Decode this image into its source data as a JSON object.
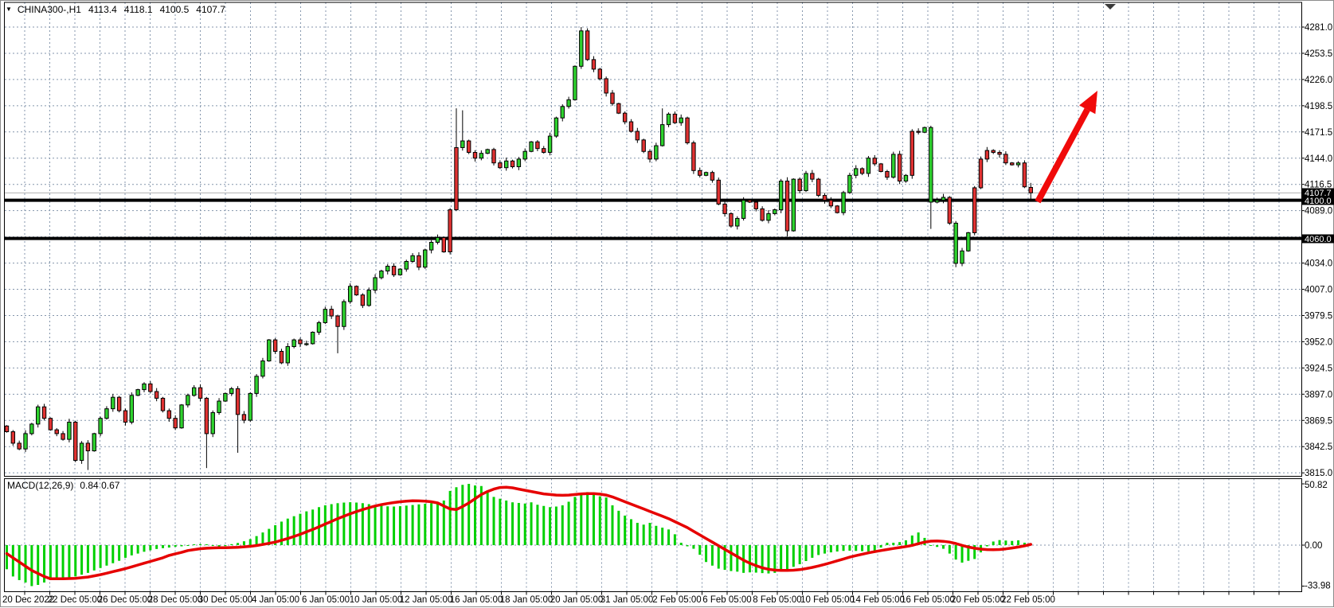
{
  "window": {
    "dropdown_icon": "▼",
    "symbol_period": "CHINA300-,H1",
    "ohlc": {
      "open": "4113.4",
      "high": "4118.1",
      "low": "4100.5",
      "close": "4107.7"
    },
    "shift_marker_icon": "▼"
  },
  "colors": {
    "background": "#ffffff",
    "grid": "#8496AC",
    "bull_body": "#2ED22E",
    "bear_body": "#E03232",
    "candle_outline": "#000000",
    "wick": "#000000",
    "level_line": "#000000",
    "current_price_line": "#b0b0b0",
    "axis_text": "#000000",
    "label_box_bg": "#000000",
    "label_box_fg": "#ffffff",
    "macd_histogram": "#00D000",
    "macd_signal": "#E60000",
    "arrow": "#F00A0A",
    "border": "#000000"
  },
  "chart_data": {
    "type": "candlestick",
    "symbol": "CHINA300-",
    "timeframe": "H1",
    "title_ohlc": {
      "open": 4113.4,
      "high": 4118.1,
      "low": 4100.5,
      "close": 4107.7
    },
    "price_axis": {
      "top": 4281.0,
      "bottom": 3815.0,
      "labels": [
        "4281.0",
        "4253.5",
        "4226.0",
        "4198.5",
        "4171.5",
        "4144.0",
        "4116.5",
        "4089.0",
        null,
        "4034.0",
        "4007.0",
        "3979.5",
        "3952.0",
        "3924.5",
        "3897.0",
        "3869.5",
        "3842.5",
        "3815.0"
      ]
    },
    "time_axis": {
      "labels": [
        "20 Dec 2022",
        "22 Dec 05:00",
        "26 Dec 05:00",
        "28 Dec 05:00",
        "30 Dec 05:00",
        "4 Jan 05:00",
        "6 Jan 05:00",
        "10 Jan 05:00",
        "12 Jan 05:00",
        "16 Jan 05:00",
        "18 Jan 05:00",
        "20 Jan 05:00",
        "31 Jan 05:00",
        "2 Feb 05:00",
        "6 Feb 05:00",
        "8 Feb 05:00",
        "10 Feb 05:00",
        "14 Feb 05:00",
        "16 Feb 05:00",
        "20 Feb 05:00",
        "22 Feb 05:00"
      ]
    },
    "levels": [
      {
        "price": 4107.7,
        "label": "4107.7",
        "style": "thin",
        "boxed": true
      },
      {
        "price": 4100.0,
        "label": "4100.0",
        "style": "thick",
        "boxed": true
      },
      {
        "price": 4060.0,
        "label": "4060.0",
        "style": "thick",
        "boxed": true
      }
    ],
    "candles": {
      "first_open": 3864,
      "closes": [
        3858,
        3846,
        3840,
        3856,
        3866,
        3884,
        3872,
        3860,
        3856,
        3850,
        3868,
        3828,
        3846,
        3838,
        3856,
        3872,
        3882,
        3894,
        3880,
        3868,
        3896,
        3902,
        3908,
        3900,
        3893,
        3880,
        3872,
        3862,
        3886,
        3896,
        3904,
        3893,
        3856,
        3878,
        3890,
        3898,
        3903,
        3876,
        3870,
        3898,
        3916,
        3932,
        3954,
        3942,
        3930,
        3947,
        3954,
        3950,
        3950,
        3962,
        3972,
        3986,
        3979,
        3968,
        3994,
        4010,
        4001,
        3990,
        4006,
        4019,
        4026,
        4031,
        4022,
        4028,
        4036,
        4042,
        4030,
        4048,
        4056,
        4061,
        4046,
        4090,
        4155,
        4162,
        4150,
        4144,
        4149,
        4153,
        4139,
        4134,
        4141,
        4135,
        4143,
        4151,
        4161,
        4154,
        4150,
        4167,
        4186,
        4198,
        4205,
        4240,
        4277,
        4247,
        4237,
        4227,
        4212,
        4201,
        4191,
        4182,
        4172,
        4163,
        4151,
        4143,
        4157,
        4179,
        4190,
        4181,
        4186,
        4160,
        4131,
        4126,
        4129,
        4121,
        4096,
        4086,
        4073,
        4081,
        4100,
        4098,
        4091,
        4079,
        4086,
        4090,
        4120,
        4068,
        4122,
        4110,
        4128,
        4122,
        4105,
        4100,
        4094,
        4087,
        4108,
        4126,
        4133,
        4128,
        4144,
        4138,
        4130,
        4124,
        4148,
        4120,
        4126,
        4172,
        4171,
        4176,
        4098,
        4100,
        4103,
        4076,
        4034,
        4047,
        4066,
        4113,
        4143,
        4152,
        4150,
        4148,
        4139,
        4137,
        4139,
        4114,
        4107.7
      ],
      "overrides": {
        "13": {
          "low": 3818
        },
        "32": {
          "low": 3820
        },
        "37": {
          "low": 3836
        },
        "53": {
          "low": 3940
        },
        "72": {
          "high": 4196
        },
        "73": {
          "high": 4194
        },
        "92": {
          "high": 4281
        },
        "105": {
          "high": 4196
        },
        "125": {
          "high": 4124,
          "low": 4062
        },
        "148": {
          "low": 4070
        },
        "152": {
          "low": 4030
        },
        "153": {
          "low": 4031
        },
        "164": {
          "open": 4113.4,
          "high": 4118.1,
          "low": 4100.5
        }
      },
      "force_color": {
        "71": "bear",
        "72": "bear",
        "145": "bear",
        "148": "bull",
        "152": "bull",
        "155": "bear",
        "156": "bear",
        "157": "bear"
      }
    },
    "macd": {
      "label": "MACD(12,26,9)",
      "value_text": "0.84 0.67",
      "axis_labels": [
        "50.82",
        "0.00",
        "-33.98"
      ],
      "axis_values": [
        50.82,
        0,
        -33.98
      ],
      "histogram": [
        -20,
        -26,
        -29,
        -31,
        -33.98,
        -33,
        -31,
        -29,
        -27.5,
        -27.5,
        -27.5,
        -26,
        -24.5,
        -23,
        -21,
        -19,
        -17,
        -15,
        -13,
        -10.5,
        -8.5,
        -7,
        -5.5,
        -4.3,
        -3.2,
        -2.5,
        -2,
        -1.4,
        -1,
        -0.6,
        0.5,
        0.8,
        0.6,
        -0.6,
        -1.2,
        -0.8,
        0.8,
        1.8,
        3.2,
        5,
        7.5,
        10.5,
        13.5,
        16.5,
        19.5,
        22,
        24,
        26,
        28,
        29.5,
        31.5,
        33,
        34,
        34.8,
        35.3,
        35.6,
        35.3,
        34.8,
        34,
        33.2,
        32.6,
        32.2,
        32,
        32.3,
        32.8,
        33.3,
        33.8,
        34.3,
        34.8,
        35,
        37,
        45,
        48,
        50,
        50.82,
        49.5,
        49,
        43.5,
        40,
        38.5,
        37,
        35.5,
        35,
        34.5,
        35.5,
        33.5,
        32.5,
        31.5,
        32,
        33,
        36,
        40,
        43.5,
        44,
        42.5,
        40.5,
        39.5,
        33,
        28.5,
        24.5,
        21.5,
        18.5,
        17,
        18.5,
        16,
        14.5,
        13,
        9,
        2,
        -1,
        -3,
        -8,
        -14,
        -17,
        -19.5,
        -20.5,
        -21.5,
        -22,
        -23,
        -22.6,
        -22.8,
        -23.2,
        -23.5,
        -23,
        -21.8,
        -20.5,
        -18,
        -15.8,
        -13.2,
        -10.5,
        -8.2,
        -7,
        -6,
        -5.3,
        -4.8,
        -4.6,
        -4.8,
        -5,
        -5.2,
        -5,
        -2,
        2,
        2,
        2.5,
        4,
        8,
        10.5,
        6,
        -0.5,
        -1.5,
        -3,
        -7,
        -12,
        -14.5,
        -13,
        -11.5,
        -6,
        -1,
        3,
        4.2,
        3.8,
        3.5,
        4,
        2,
        0.84
      ],
      "signal": [
        -7,
        -10.5,
        -14,
        -17.5,
        -21,
        -23.5,
        -26,
        -27.9,
        -27.9,
        -27.9,
        -27.7,
        -27.5,
        -27,
        -26.5,
        -25.5,
        -24.5,
        -23.3,
        -22,
        -20.8,
        -19.5,
        -18,
        -16.5,
        -15,
        -13.5,
        -12,
        -10.5,
        -8.5,
        -7.2,
        -6,
        -4.5,
        -3.7,
        -3,
        -2.6,
        -2.3,
        -2.2,
        -2.1,
        -2,
        -1.8,
        -1.4,
        -1,
        -0.3,
        0.5,
        1.5,
        2.5,
        4,
        5.5,
        7.2,
        9,
        11,
        13,
        15.2,
        17.5,
        19.7,
        22,
        24,
        26,
        27.8,
        29.5,
        31,
        32.5,
        33.6,
        34.5,
        35.3,
        36,
        36.5,
        36.8,
        36.7,
        36.5,
        36,
        35,
        32.5,
        30,
        29.5,
        32,
        35,
        38.5,
        42,
        44.5,
        46.5,
        47.8,
        48,
        47.5,
        46.5,
        45.5,
        44.5,
        43.5,
        42.5,
        42,
        41.5,
        41.3,
        41.5,
        42,
        42.5,
        42.8,
        42.8,
        42.3,
        41.5,
        40,
        38,
        36,
        34,
        32,
        30,
        28,
        26,
        24,
        22,
        19.5,
        17,
        14.5,
        11.5,
        8.5,
        5.5,
        2.5,
        -0.5,
        -3.5,
        -6.5,
        -9.5,
        -12.5,
        -15,
        -17,
        -18.8,
        -20,
        -20.7,
        -21,
        -21,
        -20.8,
        -20.3,
        -19.5,
        -18.5,
        -17.3,
        -16,
        -14.5,
        -13,
        -11.5,
        -10,
        -8.7,
        -7.5,
        -6.4,
        -5.4,
        -4.5,
        -3.6,
        -2.8,
        -2,
        -1.2,
        -0.2,
        1.2,
        2.5,
        3.3,
        3.5,
        3.2,
        2.5,
        1.3,
        -0.2,
        -1.6,
        -2.6,
        -3.3,
        -3.7,
        -3.8,
        -3.6,
        -3.1,
        -2.4,
        -1.6,
        -0.6,
        0.67
      ]
    },
    "arrow": {
      "from": [
        1302,
        252.5
      ],
      "tip": [
        1377,
        113
      ],
      "head_len": 27,
      "head_halfwidth": 11.5
    }
  }
}
